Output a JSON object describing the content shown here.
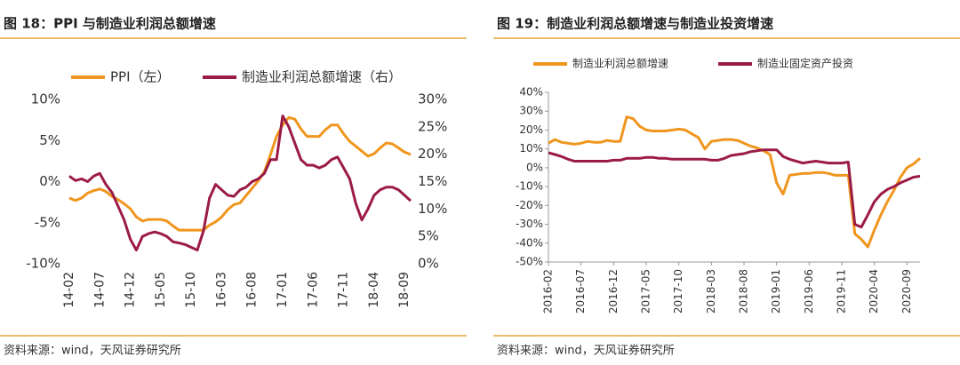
{
  "chart_data": [
    {
      "type": "line",
      "title": "图 18：PPI 与制造业利润总额增速",
      "source": "资料来源：wind，天风证券研究所",
      "categories": [
        "14-02",
        null,
        null,
        null,
        null,
        "14-07",
        null,
        null,
        null,
        null,
        "14-12",
        null,
        null,
        null,
        null,
        "15-05",
        null,
        null,
        null,
        null,
        "15-10",
        null,
        null,
        null,
        null,
        "16-03",
        null,
        null,
        null,
        null,
        "16-08",
        null,
        null,
        null,
        null,
        "17-01",
        null,
        null,
        null,
        null,
        "17-06",
        null,
        null,
        null,
        null,
        "17-11",
        null,
        null,
        null,
        null,
        "18-04",
        null,
        null,
        null,
        null,
        "18-09",
        null
      ],
      "series": [
        {
          "name": "PPI（左）",
          "color": "#F0961E",
          "axis": "y",
          "values": [
            -2.0,
            -2.3,
            -2.0,
            -1.4,
            -1.1,
            -0.9,
            -1.2,
            -1.8,
            -2.2,
            -2.7,
            -3.3,
            -4.3,
            -4.8,
            -4.6,
            -4.6,
            -4.6,
            -4.8,
            -5.4,
            -5.9,
            -5.9,
            -5.9,
            -5.9,
            -5.9,
            -5.3,
            -4.9,
            -4.3,
            -3.4,
            -2.8,
            -2.6,
            -1.7,
            -0.8,
            0.1,
            1.2,
            3.3,
            5.5,
            6.9,
            7.8,
            7.6,
            6.4,
            5.5,
            5.5,
            5.5,
            6.3,
            6.9,
            6.9,
            5.8,
            4.9,
            4.3,
            3.7,
            3.1,
            3.4,
            4.1,
            4.7,
            4.6,
            4.1,
            3.6,
            3.3
          ]
        },
        {
          "name": "制造业利润总额增速（右）",
          "color": "#9B1B45",
          "axis": "y2",
          "values": [
            16.0,
            15.2,
            15.5,
            15.0,
            16.0,
            16.5,
            14.5,
            13.0,
            10.5,
            8.0,
            4.5,
            2.5,
            5.0,
            5.5,
            5.8,
            5.5,
            5.0,
            4.0,
            3.8,
            3.5,
            3.0,
            2.5,
            6.0,
            12.0,
            14.5,
            13.5,
            12.5,
            12.3,
            13.5,
            14.0,
            15.0,
            15.5,
            16.5,
            19.0,
            19.0,
            27.0,
            25.0,
            22.0,
            19.0,
            18.0,
            18.0,
            17.5,
            18.0,
            19.0,
            19.5,
            17.5,
            15.5,
            11.0,
            8.0,
            10.0,
            12.5,
            13.5,
            14.0,
            14.0,
            13.5,
            12.5,
            11.5
          ]
        }
      ],
      "ylim": [
        -10,
        10
      ],
      "yticks": [
        {
          "value": -10,
          "label": "-10%"
        },
        {
          "value": -5,
          "label": "-5%"
        },
        {
          "value": 0,
          "label": "0%"
        },
        {
          "value": 5,
          "label": "5%"
        },
        {
          "value": 10,
          "label": "10%"
        }
      ],
      "y2lim": [
        0,
        30
      ],
      "y2ticks": [
        {
          "value": 0,
          "label": "0%"
        },
        {
          "value": 5,
          "label": "5%"
        },
        {
          "value": 10,
          "label": "10%"
        },
        {
          "value": 15,
          "label": "15%"
        },
        {
          "value": 20,
          "label": "20%"
        },
        {
          "value": 25,
          "label": "25%"
        },
        {
          "value": 30,
          "label": "30%"
        }
      ],
      "legend": "top"
    },
    {
      "type": "line",
      "title": "图 19：制造业利润总额增速与制造业投资增速",
      "source": "资料来源：wind，天风证券研究所",
      "categories": [
        "2016-02",
        null,
        null,
        null,
        null,
        "2016-07",
        null,
        null,
        null,
        null,
        "2016-12",
        null,
        null,
        null,
        null,
        "2017-05",
        null,
        null,
        null,
        null,
        "2017-10",
        null,
        null,
        null,
        null,
        "2018-03",
        null,
        null,
        null,
        null,
        "2018-08",
        null,
        null,
        null,
        null,
        "2019-01",
        null,
        null,
        null,
        null,
        "2019-06",
        null,
        null,
        null,
        null,
        "2019-11",
        null,
        null,
        null,
        null,
        "2020-04",
        null,
        null,
        null,
        null,
        "2020-09",
        null,
        null
      ],
      "series": [
        {
          "name": "制造业利润总额增速",
          "color": "#F0961E",
          "axis": "y",
          "values": [
            13,
            15,
            13.5,
            13,
            12.5,
            13,
            14,
            13.5,
            13.5,
            14.5,
            14,
            14,
            27,
            26,
            22,
            20,
            19.5,
            19.5,
            19.5,
            20,
            20.5,
            20,
            18,
            16,
            10,
            14,
            14.5,
            15,
            15,
            14.5,
            13,
            11.5,
            10.5,
            9,
            7,
            -8,
            -14,
            -4,
            -3.5,
            -3,
            -3,
            -2.5,
            -2.5,
            -3,
            -4,
            -4,
            -4,
            -35,
            -38,
            -42,
            -33,
            -25,
            -18,
            -12,
            -5,
            0,
            2,
            5
          ]
        },
        {
          "name": "制造业固定资产投资",
          "color": "#9B1B45",
          "axis": "y",
          "values": [
            8,
            7,
            6,
            4.5,
            3.5,
            3.5,
            3.5,
            3.5,
            3.5,
            3.5,
            4,
            4,
            5,
            5,
            5,
            5.5,
            5.5,
            5,
            5,
            4.5,
            4.5,
            4.5,
            4.5,
            4.5,
            4.5,
            4,
            4,
            5,
            6.5,
            7,
            7.5,
            8.5,
            9,
            9.5,
            9.5,
            9.5,
            6,
            4.5,
            3.5,
            2.5,
            3,
            3.5,
            3,
            2.5,
            2.5,
            2.5,
            3,
            -30,
            -31.5,
            -25,
            -18,
            -14,
            -11.5,
            -10,
            -8,
            -6.5,
            -5,
            -4.5
          ]
        }
      ],
      "ylim": [
        -50,
        40
      ],
      "yticks": [
        {
          "value": -50,
          "label": "-50%"
        },
        {
          "value": -40,
          "label": "-40%"
        },
        {
          "value": -30,
          "label": "-30%"
        },
        {
          "value": -20,
          "label": "-20%"
        },
        {
          "value": -10,
          "label": "-10%"
        },
        {
          "value": 0,
          "label": "0%"
        },
        {
          "value": 10,
          "label": "10%"
        },
        {
          "value": 20,
          "label": "20%"
        },
        {
          "value": 30,
          "label": "30%"
        },
        {
          "value": 40,
          "label": "40%"
        }
      ],
      "legend": "top"
    }
  ]
}
